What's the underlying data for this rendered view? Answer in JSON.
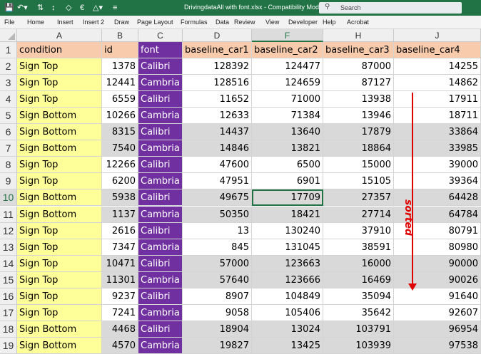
{
  "window": {
    "document_title": "DrivingdataAll with font.xlsx  -  Compatibility Mode  ▾",
    "search_placeholder": "Search"
  },
  "menu": [
    "File",
    "Home",
    "Insert",
    "Insert 2",
    "Draw",
    "Page Layout",
    "Formulas",
    "Data",
    "Review",
    "View",
    "Developer",
    "Help",
    "Acrobat"
  ],
  "columns": [
    "A",
    "B",
    "C",
    "D",
    "F",
    "H",
    "J"
  ],
  "selected_column": "F",
  "header_row": {
    "row": "1",
    "condition": "condition",
    "id": "id",
    "font": "font",
    "c1": "baseline_car1",
    "c2": "baseline_car2",
    "c3": "baseline_car3",
    "c4": "baseline_car4"
  },
  "rows": [
    {
      "row": "2",
      "condition": "Sign Top",
      "id": "1378",
      "font": "Calibri",
      "c1": "128392",
      "c2": "124477",
      "c3": "87000",
      "c4": "14255"
    },
    {
      "row": "3",
      "condition": "Sign Top",
      "id": "12441",
      "font": "Cambria",
      "c1": "128516",
      "c2": "124659",
      "c3": "87127",
      "c4": "14862"
    },
    {
      "row": "4",
      "condition": "Sign Top",
      "id": "6559",
      "font": "Calibri",
      "c1": "11652",
      "c2": "71000",
      "c3": "13938",
      "c4": "17911"
    },
    {
      "row": "5",
      "condition": "Sign Bottom",
      "id": "10266",
      "font": "Cambria",
      "c1": "12633",
      "c2": "71384",
      "c3": "13946",
      "c4": "18711"
    },
    {
      "row": "6",
      "condition": "Sign Bottom",
      "id": "8315",
      "font": "Calibri",
      "c1": "14437",
      "c2": "13640",
      "c3": "17879",
      "c4": "33864"
    },
    {
      "row": "7",
      "condition": "Sign Bottom",
      "id": "7540",
      "font": "Cambria",
      "c1": "14846",
      "c2": "13821",
      "c3": "18864",
      "c4": "33985"
    },
    {
      "row": "8",
      "condition": "Sign Top",
      "id": "12266",
      "font": "Calibri",
      "c1": "47600",
      "c2": "6500",
      "c3": "15000",
      "c4": "39000"
    },
    {
      "row": "9",
      "condition": "Sign Top",
      "id": "6200",
      "font": "Cambria",
      "c1": "47951",
      "c2": "6901",
      "c3": "15105",
      "c4": "39364"
    },
    {
      "row": "10",
      "condition": "Sign Bottom",
      "id": "5938",
      "font": "Calibri",
      "c1": "49675",
      "c2": "17709",
      "c3": "27357",
      "c4": "64428"
    },
    {
      "row": "11",
      "condition": "Sign Bottom",
      "id": "1137",
      "font": "Cambria",
      "c1": "50350",
      "c2": "18421",
      "c3": "27714",
      "c4": "64784"
    },
    {
      "row": "12",
      "condition": "Sign Top",
      "id": "2616",
      "font": "Calibri",
      "c1": "13",
      "c2": "130240",
      "c3": "37910",
      "c4": "80791"
    },
    {
      "row": "13",
      "condition": "Sign Top",
      "id": "7347",
      "font": "Cambria",
      "c1": "845",
      "c2": "131045",
      "c3": "38591",
      "c4": "80980"
    },
    {
      "row": "14",
      "condition": "Sign Top",
      "id": "10471",
      "font": "Calibri",
      "c1": "57000",
      "c2": "123663",
      "c3": "16000",
      "c4": "90000"
    },
    {
      "row": "15",
      "condition": "Sign Top",
      "id": "11301",
      "font": "Cambria",
      "c1": "57640",
      "c2": "123666",
      "c3": "16469",
      "c4": "90026"
    },
    {
      "row": "16",
      "condition": "Sign Top",
      "id": "9237",
      "font": "Calibri",
      "c1": "8907",
      "c2": "104849",
      "c3": "35094",
      "c4": "91640"
    },
    {
      "row": "17",
      "condition": "Sign Top",
      "id": "7241",
      "font": "Cambria",
      "c1": "9058",
      "c2": "105406",
      "c3": "35642",
      "c4": "92607"
    },
    {
      "row": "18",
      "condition": "Sign Bottom",
      "id": "4468",
      "font": "Calibri",
      "c1": "18904",
      "c2": "13024",
      "c3": "103791",
      "c4": "96954"
    },
    {
      "row": "19",
      "condition": "Sign Bottom",
      "id": "4570",
      "font": "Cambria",
      "c1": "19827",
      "c2": "13425",
      "c3": "103939",
      "c4": "97538"
    }
  ],
  "annotation": {
    "text": "sorted",
    "color": "#e00000"
  },
  "colors": {
    "title_bar": "#217346",
    "condition_fill": "#ffff99",
    "header_fill": "#f8cbad",
    "font_fill": "#7030a0",
    "grey_band": "#d9d9d9"
  }
}
